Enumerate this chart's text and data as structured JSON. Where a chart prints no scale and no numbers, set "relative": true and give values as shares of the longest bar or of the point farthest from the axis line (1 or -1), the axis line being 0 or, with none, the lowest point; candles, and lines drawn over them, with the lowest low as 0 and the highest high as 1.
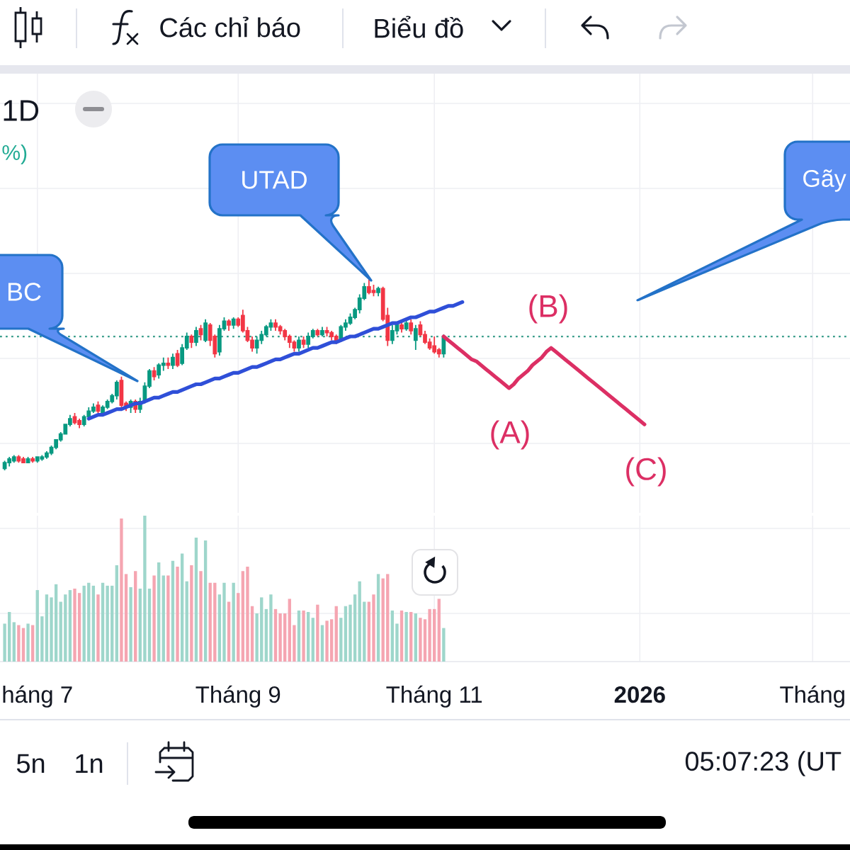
{
  "chart_data": [
    {
      "type": "candlestick",
      "relative": true,
      "categories": [
        null,
        null,
        null,
        null,
        null,
        null,
        null,
        null,
        null,
        null,
        null,
        null,
        null,
        null,
        null,
        null,
        null,
        null,
        null,
        null,
        null,
        null,
        null,
        null,
        null,
        null,
        null,
        null,
        null,
        null,
        null,
        null,
        null,
        null,
        null,
        null,
        null,
        null,
        null,
        null,
        null,
        null,
        null,
        null,
        null,
        null,
        null,
        null,
        null,
        null,
        null,
        null,
        null,
        null,
        null,
        null,
        null,
        null,
        null,
        null,
        null,
        null,
        null,
        null,
        null,
        null,
        null,
        null,
        null,
        null,
        null,
        null,
        null,
        null,
        null,
        null,
        null,
        null,
        null,
        null,
        null,
        null,
        null,
        null,
        null,
        null,
        null,
        null,
        null,
        null,
        null,
        null,
        null,
        null,
        null,
        null,
        null,
        null,
        null,
        null,
        null,
        null,
        null,
        null,
        null,
        null,
        null,
        null,
        null,
        null,
        null,
        null,
        null,
        null,
        null,
        null,
        null,
        null,
        null,
        null,
        null,
        null,
        null,
        null,
        null,
        null,
        null,
        null,
        null,
        null,
        null,
        null,
        null,
        null,
        null,
        null,
        null,
        null,
        null,
        null,
        null,
        null,
        null,
        null,
        null,
        null,
        null,
        null,
        null,
        null,
        null,
        null,
        null,
        null,
        null,
        null,
        null,
        null,
        null,
        null,
        null,
        null,
        null,
        null,
        null,
        null,
        null,
        null,
        null,
        null,
        null,
        null,
        null,
        null,
        null,
        null,
        null,
        null,
        null,
        null,
        null
      ],
      "ohlc": [
        [
          0.01,
          0.05,
          0,
          0.04
        ],
        [
          0.04,
          0.07,
          0.02,
          0.06
        ],
        [
          0.05,
          0.08,
          0.04,
          0.07
        ],
        [
          0.07,
          0.08,
          0.04,
          0.05
        ],
        [
          0.06,
          0.07,
          0.04,
          0.04
        ],
        [
          0.04,
          0.07,
          0.04,
          0.06
        ],
        [
          0.06,
          0.07,
          0.04,
          0.05
        ],
        [
          0.05,
          0.07,
          0.04,
          0.07
        ],
        [
          0.06,
          0.08,
          0.05,
          0.07
        ],
        [
          0.07,
          0.1,
          0.06,
          0.09
        ],
        [
          0.09,
          0.13,
          0.08,
          0.12
        ],
        [
          0.12,
          0.16,
          0.11,
          0.16
        ],
        [
          0.16,
          0.2,
          0.15,
          0.19
        ],
        [
          0.19,
          0.24,
          0.19,
          0.24
        ],
        [
          0.24,
          0.29,
          0.23,
          0.27
        ],
        [
          0.28,
          0.3,
          0.24,
          0.25
        ],
        [
          0.26,
          0.27,
          0.22,
          0.24
        ],
        [
          0.24,
          0.29,
          0.23,
          0.28
        ],
        [
          0.28,
          0.33,
          0.27,
          0.31
        ],
        [
          0.31,
          0.35,
          0.3,
          0.33
        ],
        [
          0.34,
          0.36,
          0.3,
          0.31
        ],
        [
          0.3,
          0.34,
          0.29,
          0.33
        ],
        [
          0.33,
          0.37,
          0.32,
          0.36
        ],
        [
          0.36,
          0.4,
          0.35,
          0.39
        ],
        [
          0.39,
          0.47,
          0.37,
          0.46
        ],
        [
          0.47,
          0.49,
          0.33,
          0.34
        ],
        [
          0.35,
          0.36,
          0.31,
          0.33
        ],
        [
          0.33,
          0.37,
          0.3,
          0.36
        ],
        [
          0.36,
          0.37,
          0.3,
          0.32
        ],
        [
          0.32,
          0.38,
          0.3,
          0.36
        ],
        [
          0.36,
          0.46,
          0.35,
          0.44
        ],
        [
          0.44,
          0.53,
          0.43,
          0.52
        ],
        [
          0.52,
          0.54,
          0.47,
          0.49
        ],
        [
          0.5,
          0.56,
          0.48,
          0.55
        ],
        [
          0.55,
          0.59,
          0.52,
          0.56
        ],
        [
          0.56,
          0.59,
          0.53,
          0.55
        ],
        [
          0.55,
          0.61,
          0.53,
          0.59
        ],
        [
          0.61,
          0.63,
          0.54,
          0.55
        ],
        [
          0.56,
          0.66,
          0.55,
          0.64
        ],
        [
          0.64,
          0.72,
          0.63,
          0.7
        ],
        [
          0.7,
          0.71,
          0.64,
          0.67
        ],
        [
          0.67,
          0.75,
          0.65,
          0.73
        ],
        [
          0.74,
          0.76,
          0.68,
          0.71
        ],
        [
          0.68,
          0.79,
          0.67,
          0.77
        ],
        [
          0.76,
          0.77,
          0.65,
          0.68
        ],
        [
          0.7,
          0.71,
          0.59,
          0.61
        ],
        [
          0.62,
          0.76,
          0.6,
          0.74
        ],
        [
          0.74,
          0.8,
          0.73,
          0.78
        ],
        [
          0.78,
          0.79,
          0.73,
          0.76
        ],
        [
          0.76,
          0.8,
          0.74,
          0.79
        ],
        [
          0.79,
          0.8,
          0.75,
          0.76
        ],
        [
          0.81,
          0.84,
          0.72,
          0.73
        ],
        [
          0.73,
          0.75,
          0.67,
          0.68
        ],
        [
          0.68,
          0.7,
          0.62,
          0.64
        ],
        [
          0.64,
          0.7,
          0.61,
          0.68
        ],
        [
          0.68,
          0.73,
          0.66,
          0.71
        ],
        [
          0.71,
          0.76,
          0.7,
          0.75
        ],
        [
          0.75,
          0.79,
          0.73,
          0.77
        ],
        [
          0.77,
          0.79,
          0.73,
          0.75
        ],
        [
          0.75,
          0.76,
          0.71,
          0.73
        ],
        [
          0.73,
          0.74,
          0.68,
          0.7
        ],
        [
          0.7,
          0.71,
          0.64,
          0.67
        ],
        [
          0.67,
          0.68,
          0.62,
          0.64
        ],
        [
          0.64,
          0.7,
          0.62,
          0.68
        ],
        [
          0.68,
          0.7,
          0.64,
          0.66
        ],
        [
          0.66,
          0.72,
          0.64,
          0.7
        ],
        [
          0.7,
          0.74,
          0.69,
          0.73
        ],
        [
          0.73,
          0.74,
          0.7,
          0.71
        ],
        [
          0.71,
          0.75,
          0.7,
          0.73
        ],
        [
          0.73,
          0.75,
          0.7,
          0.72
        ],
        [
          0.72,
          0.73,
          0.68,
          0.7
        ],
        [
          0.7,
          0.71,
          0.66,
          0.68
        ],
        [
          0.68,
          0.76,
          0.67,
          0.75
        ],
        [
          0.75,
          0.79,
          0.73,
          0.77
        ],
        [
          0.77,
          0.82,
          0.76,
          0.8
        ],
        [
          0.8,
          0.85,
          0.79,
          0.84
        ],
        [
          0.84,
          0.92,
          0.82,
          0.9
        ],
        [
          0.9,
          0.98,
          0.89,
          0.96
        ],
        [
          0.96,
          1.0,
          0.92,
          0.93
        ],
        [
          0.94,
          0.97,
          0.91,
          0.93
        ],
        [
          0.93,
          0.96,
          0.91,
          0.95
        ],
        [
          0.95,
          0.96,
          0.78,
          0.79
        ],
        [
          0.81,
          0.85,
          0.65,
          0.68
        ],
        [
          0.68,
          0.76,
          0.66,
          0.73
        ],
        [
          0.73,
          0.77,
          0.71,
          0.76
        ],
        [
          0.76,
          0.78,
          0.72,
          0.74
        ],
        [
          0.74,
          0.79,
          0.73,
          0.77
        ],
        [
          0.77,
          0.79,
          0.71,
          0.73
        ],
        [
          0.68,
          0.76,
          0.63,
          0.74
        ],
        [
          0.76,
          0.78,
          0.7,
          0.71
        ],
        [
          0.71,
          0.73,
          0.66,
          0.67
        ],
        [
          0.67,
          0.69,
          0.63,
          0.64
        ],
        [
          0.65,
          0.7,
          0.61,
          0.62
        ],
        [
          0.63,
          0.64,
          0.59,
          0.61
        ],
        [
          0.61,
          0.71,
          0.59,
          0.7
        ],
        null,
        null,
        null,
        null,
        null,
        null,
        null,
        null,
        null,
        null,
        null,
        null,
        null,
        null,
        null,
        null,
        null,
        null,
        null,
        null,
        null,
        null,
        null,
        null,
        null,
        null,
        null,
        null,
        null,
        null,
        null,
        null,
        null,
        null,
        null,
        null,
        null,
        null,
        null,
        null,
        null,
        null,
        null,
        null,
        null,
        null,
        null,
        null,
        null,
        null,
        null,
        null,
        null,
        null,
        null,
        null,
        null,
        null,
        null,
        null,
        null,
        null,
        null,
        null,
        null,
        null,
        null,
        null,
        null,
        null,
        null,
        null,
        null,
        null,
        null,
        null,
        null,
        null,
        null,
        null,
        null,
        null,
        null,
        null,
        null,
        null
      ],
      "colors": [
        "#089981",
        "#089981",
        "#089981",
        "#f23645",
        "#f23645",
        "#089981",
        "#f23645",
        "#089981",
        "#089981",
        "#089981",
        "#089981",
        "#089981",
        "#089981",
        "#089981",
        "#089981",
        "#f23645",
        "#f23645",
        "#089981",
        "#089981",
        "#089981",
        "#f23645",
        "#089981",
        "#089981",
        "#089981",
        "#089981",
        "#f23645",
        "#f23645",
        "#089981",
        "#f23645",
        "#089981",
        "#089981",
        "#089981",
        "#f23645",
        "#089981",
        "#089981",
        "#f23645",
        "#089981",
        "#f23645",
        "#089981",
        "#089981",
        "#f23645",
        "#089981",
        "#f23645",
        "#089981",
        "#f23645",
        "#f23645",
        "#089981",
        "#089981",
        "#f23645",
        "#089981",
        "#f23645",
        "#f23645",
        "#f23645",
        "#f23645",
        "#089981",
        "#089981",
        "#089981",
        "#089981",
        "#f23645",
        "#f23645",
        "#f23645",
        "#f23645",
        "#f23645",
        "#089981",
        "#f23645",
        "#089981",
        "#089981",
        "#f23645",
        "#089981",
        "#f23645",
        "#f23645",
        "#f23645",
        "#089981",
        "#089981",
        "#089981",
        "#089981",
        "#089981",
        "#089981",
        "#f23645",
        "#f23645",
        "#089981",
        "#f23645",
        "#f23645",
        "#089981",
        "#089981",
        "#f23645",
        "#089981",
        "#f23645",
        "#089981",
        "#f23645",
        "#f23645",
        "#f23645",
        "#f23645",
        "#f23645",
        "#089981",
        null,
        null,
        null,
        null,
        null,
        null,
        null,
        null,
        null,
        null,
        null,
        null,
        null,
        null,
        null,
        null,
        null,
        null,
        null,
        null,
        null,
        null,
        null,
        null,
        null,
        null,
        null,
        null,
        null,
        null,
        null,
        null,
        null,
        null,
        null,
        null,
        null,
        null,
        null,
        null,
        null,
        null,
        null,
        null,
        null,
        null,
        null,
        null,
        null,
        null,
        null,
        null,
        null,
        null,
        null,
        null,
        null,
        null,
        null,
        null,
        null,
        null,
        null,
        null,
        null,
        null,
        null,
        null,
        null,
        null,
        null,
        null,
        null,
        null,
        null,
        null,
        null,
        null,
        null,
        null,
        null,
        null,
        null,
        null,
        null,
        null
      ],
      "grid": true,
      "series": [
        {
          "type": "line",
          "color": "#2f4fd8",
          "values": [
            null,
            null,
            null,
            null,
            null,
            null,
            null,
            null,
            null,
            null,
            null,
            null,
            null,
            null,
            null,
            null,
            null,
            null,
            0.27,
            0.28,
            0.29,
            0.29,
            0.3,
            0.31,
            0.32,
            0.32,
            0.33,
            0.34,
            0.35,
            0.35,
            0.36,
            0.37,
            0.38,
            0.38,
            0.39,
            0.4,
            0.41,
            0.41,
            0.42,
            0.43,
            0.44,
            0.45,
            0.45,
            0.46,
            0.47,
            0.48,
            0.48,
            0.49,
            0.5,
            0.51,
            0.51,
            0.52,
            0.53,
            0.54,
            0.54,
            0.55,
            0.56,
            0.57,
            0.58,
            0.58,
            0.59,
            0.6,
            0.61,
            0.61,
            0.62,
            0.63,
            0.64,
            0.64,
            0.65,
            0.66,
            0.67,
            0.67,
            0.68,
            0.69,
            0.7,
            0.7,
            0.71,
            0.72,
            0.73,
            0.74,
            0.74,
            0.75,
            0.76,
            0.77,
            0.77,
            0.78,
            0.79,
            0.8,
            0.8,
            0.81,
            0.82,
            0.83,
            0.83,
            0.84,
            0.85,
            0.86,
            0.86,
            0.87,
            0.88,
            null,
            null,
            null,
            null,
            null,
            null,
            null,
            null,
            null,
            null,
            null,
            null,
            null,
            null,
            null,
            null,
            null,
            null,
            null,
            null,
            null,
            null,
            null,
            null,
            null,
            null,
            null,
            null,
            null,
            null,
            null,
            null,
            null,
            null,
            null,
            null,
            null,
            null,
            null,
            null,
            null,
            null,
            null,
            null,
            null,
            null,
            null,
            null,
            null,
            null,
            null,
            null,
            null,
            null,
            null,
            null,
            null,
            null,
            null,
            null,
            null,
            null,
            null,
            null,
            null,
            null,
            null,
            null,
            null,
            null,
            null,
            null,
            null,
            null,
            null,
            null,
            null,
            null,
            null,
            null,
            null,
            null
          ]
        },
        {
          "type": "line",
          "color": "#dc2f64",
          "values": [
            null,
            null,
            null,
            null,
            null,
            null,
            null,
            null,
            null,
            null,
            null,
            null,
            null,
            null,
            null,
            null,
            null,
            null,
            null,
            null,
            null,
            null,
            null,
            null,
            null,
            null,
            null,
            null,
            null,
            null,
            null,
            null,
            null,
            null,
            null,
            null,
            null,
            null,
            null,
            null,
            null,
            null,
            null,
            null,
            null,
            null,
            null,
            null,
            null,
            null,
            null,
            null,
            null,
            null,
            null,
            null,
            null,
            null,
            null,
            null,
            null,
            null,
            null,
            null,
            null,
            null,
            null,
            null,
            null,
            null,
            null,
            null,
            null,
            null,
            null,
            null,
            null,
            null,
            null,
            null,
            null,
            null,
            null,
            null,
            null,
            null,
            null,
            null,
            null,
            null,
            null,
            null,
            null,
            null,
            0.7,
            0.68,
            0.66,
            0.64,
            0.62,
            0.6,
            0.58,
            0.57,
            0.55,
            0.53,
            0.51,
            0.49,
            0.47,
            0.45,
            0.43,
            0.45,
            0.48,
            0.5,
            0.52,
            0.55,
            0.57,
            0.59,
            0.62,
            0.64,
            0.62,
            0.6,
            0.58,
            0.56,
            0.54,
            0.52,
            0.5,
            0.48,
            0.46,
            0.44,
            0.42,
            0.4,
            0.38,
            0.36,
            0.34,
            0.32,
            0.3,
            0.28,
            0.26,
            0.24,
            null,
            null,
            null,
            null,
            null,
            null,
            null,
            null,
            null,
            null,
            null,
            null,
            null,
            null,
            null,
            null,
            null,
            null,
            null,
            null,
            null,
            null,
            null,
            null,
            null,
            null,
            null,
            null,
            null,
            null,
            null,
            null,
            null,
            null,
            null,
            null,
            null,
            null,
            null,
            null,
            null,
            null,
            null
          ]
        }
      ],
      "ref_lines": [
        {
          "axis": "y",
          "value": 0.7,
          "color": "#3d9f8d",
          "line_style": "dotted"
        }
      ],
      "annotations": [
        "BC",
        "UTAD",
        "Gãy",
        "(A)",
        "(B)",
        "(C)",
        "Các chỉ báo",
        "Biểu đồ",
        "1D",
        "%)"
      ]
    },
    {
      "type": "bar",
      "relative": true,
      "categories": [
        null,
        null,
        null,
        null,
        null,
        null,
        null,
        "háng 7",
        null,
        null,
        null,
        null,
        null,
        null,
        null,
        null,
        null,
        null,
        null,
        null,
        null,
        null,
        null,
        null,
        null,
        null,
        null,
        null,
        null,
        null,
        null,
        null,
        null,
        null,
        null,
        null,
        null,
        null,
        null,
        null,
        null,
        null,
        null,
        null,
        null,
        null,
        null,
        null,
        null,
        null,
        "Tháng 9",
        null,
        null,
        null,
        null,
        null,
        null,
        null,
        null,
        null,
        null,
        null,
        null,
        null,
        null,
        null,
        null,
        null,
        null,
        null,
        null,
        null,
        null,
        null,
        null,
        null,
        null,
        null,
        null,
        null,
        null,
        null,
        null,
        null,
        null,
        null,
        null,
        null,
        null,
        null,
        null,
        null,
        "Tháng 11",
        null,
        null,
        null,
        null,
        null,
        null,
        null,
        null,
        null,
        null,
        null,
        null,
        null,
        null,
        null,
        null,
        null,
        null,
        null,
        null,
        null,
        null,
        null,
        null,
        null,
        null,
        null,
        null,
        null,
        null,
        null,
        null,
        null,
        null,
        null,
        null,
        null,
        null,
        null,
        null,
        null,
        null,
        null,
        "**2026**",
        null,
        null,
        null,
        null,
        null,
        null,
        null,
        null,
        null,
        null,
        null,
        null,
        null,
        null,
        null,
        null,
        null,
        null,
        null,
        null,
        null,
        null,
        null,
        null,
        null,
        null,
        null,
        null,
        null,
        null,
        null,
        null,
        null,
        null,
        null,
        null,
        "Tháng",
        null,
        null,
        null,
        null,
        null,
        null,
        null
      ],
      "values": [
        0.26,
        0.34,
        0.27,
        0.25,
        0.23,
        0.26,
        0.25,
        0.49,
        0.31,
        0.46,
        0.44,
        0.53,
        0.41,
        0.46,
        0.49,
        0.5,
        0.47,
        0.52,
        0.54,
        0.52,
        0.46,
        0.54,
        0.52,
        0.52,
        0.66,
        0.98,
        0.6,
        0.51,
        0.62,
        0.5,
        1.0,
        0.5,
        0.59,
        0.68,
        0.59,
        0.59,
        0.69,
        0.65,
        0.74,
        0.55,
        0.66,
        0.85,
        0.62,
        0.83,
        0.54,
        0.54,
        0.46,
        0.54,
        0.41,
        0.54,
        0.47,
        0.62,
        0.65,
        0.38,
        0.33,
        0.44,
        0.36,
        0.46,
        0.36,
        0.33,
        0.33,
        0.43,
        0.25,
        0.35,
        0.35,
        0.34,
        0.3,
        0.39,
        0.25,
        0.28,
        0.29,
        0.38,
        0.3,
        0.38,
        0.39,
        0.46,
        0.55,
        0.41,
        0.41,
        0.46,
        0.6,
        0.57,
        0.6,
        0.35,
        0.26,
        0.35,
        0.34,
        0.34,
        0.33,
        0.3,
        0.29,
        0.36,
        0.36,
        0.43,
        0.23,
        null,
        null,
        null,
        null,
        null,
        null,
        null,
        null,
        null,
        null,
        null,
        null,
        null,
        null,
        null,
        null,
        null,
        null,
        null,
        null,
        null,
        null,
        null,
        null,
        null,
        null,
        null,
        null,
        null,
        null,
        null,
        null,
        null,
        null,
        null,
        null,
        null,
        null,
        null,
        null,
        null,
        null,
        null,
        null,
        null,
        null,
        null,
        null,
        null,
        null,
        null,
        null,
        null,
        null,
        null,
        null,
        null,
        null,
        null,
        null,
        null,
        null,
        null,
        null,
        null,
        null,
        null,
        null,
        null,
        null,
        null,
        null,
        null,
        null,
        null,
        null,
        null,
        null,
        null,
        null,
        null,
        null,
        null,
        null,
        null,
        null
      ],
      "colors": [
        "#9ed6cb",
        "#9ed6cb",
        "#9ed6cb",
        "#f5a5b1",
        "#f5a5b1",
        "#9ed6cb",
        "#f5a5b1",
        "#9ed6cb",
        "#9ed6cb",
        "#9ed6cb",
        "#9ed6cb",
        "#9ed6cb",
        "#9ed6cb",
        "#9ed6cb",
        "#9ed6cb",
        "#f5a5b1",
        "#f5a5b1",
        "#9ed6cb",
        "#9ed6cb",
        "#9ed6cb",
        "#f5a5b1",
        "#9ed6cb",
        "#9ed6cb",
        "#9ed6cb",
        "#9ed6cb",
        "#f5a5b1",
        "#f5a5b1",
        "#9ed6cb",
        "#f5a5b1",
        "#9ed6cb",
        "#9ed6cb",
        "#9ed6cb",
        "#f5a5b1",
        "#9ed6cb",
        "#9ed6cb",
        "#f5a5b1",
        "#9ed6cb",
        "#f5a5b1",
        "#9ed6cb",
        "#9ed6cb",
        "#f5a5b1",
        "#9ed6cb",
        "#f5a5b1",
        "#9ed6cb",
        "#f5a5b1",
        "#f5a5b1",
        "#9ed6cb",
        "#9ed6cb",
        "#f5a5b1",
        "#9ed6cb",
        "#f5a5b1",
        "#f5a5b1",
        "#f5a5b1",
        "#f5a5b1",
        "#9ed6cb",
        "#9ed6cb",
        "#9ed6cb",
        "#9ed6cb",
        "#f5a5b1",
        "#f5a5b1",
        "#f5a5b1",
        "#f5a5b1",
        "#f5a5b1",
        "#9ed6cb",
        "#f5a5b1",
        "#9ed6cb",
        "#9ed6cb",
        "#f5a5b1",
        "#9ed6cb",
        "#f5a5b1",
        "#f5a5b1",
        "#f5a5b1",
        "#9ed6cb",
        "#9ed6cb",
        "#9ed6cb",
        "#9ed6cb",
        "#9ed6cb",
        "#9ed6cb",
        "#f5a5b1",
        "#f5a5b1",
        "#9ed6cb",
        "#f5a5b1",
        "#f5a5b1",
        "#9ed6cb",
        "#9ed6cb",
        "#f5a5b1",
        "#9ed6cb",
        "#f5a5b1",
        "#9ed6cb",
        "#f5a5b1",
        "#f5a5b1",
        "#f5a5b1",
        "#f5a5b1",
        "#f5a5b1",
        "#9ed6cb",
        null,
        null,
        null,
        null,
        null,
        null,
        null,
        null,
        null,
        null,
        null,
        null,
        null,
        null,
        null,
        null,
        null,
        null,
        null,
        null,
        null,
        null,
        null,
        null,
        null,
        null,
        null,
        null,
        null,
        null,
        null,
        null,
        null,
        null,
        null,
        null,
        null,
        null,
        null,
        null,
        null,
        null,
        null,
        null,
        null,
        null,
        null,
        null,
        null,
        null,
        null,
        null,
        null,
        null,
        null,
        null,
        null,
        null,
        null,
        null,
        null,
        null,
        null,
        null,
        null,
        null,
        null,
        null,
        null,
        null,
        null,
        null,
        null,
        null,
        null,
        null,
        null,
        null,
        null,
        null,
        null,
        null,
        null,
        null,
        null,
        null
      ],
      "grid": true,
      "annotations": [
        "5n",
        "1n",
        "05:07:23 (UT"
      ]
    }
  ]
}
